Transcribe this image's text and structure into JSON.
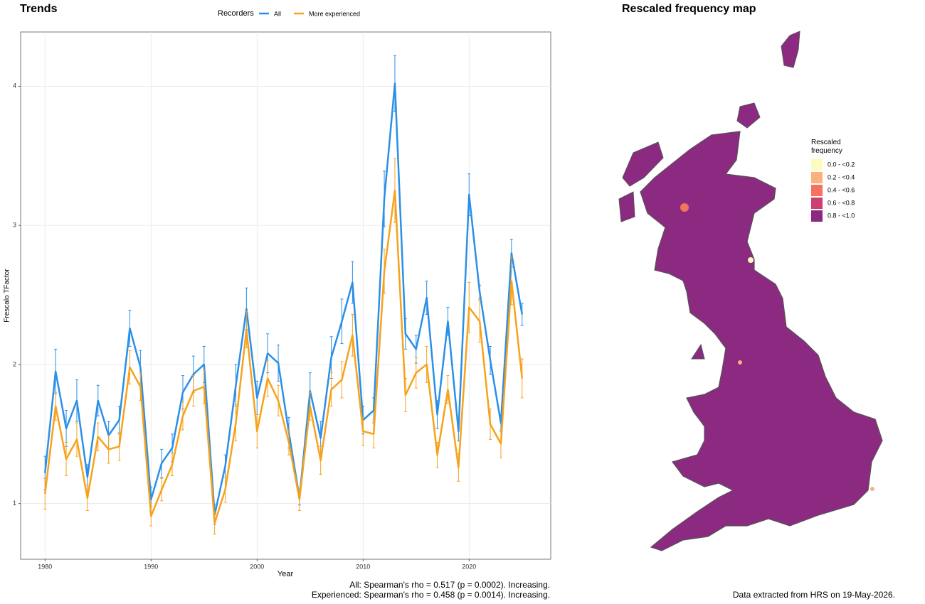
{
  "chart_data": [
    {
      "type": "line",
      "title": "Trends",
      "legend_title": "Recorders",
      "x_label": "Year",
      "y_label": "Frescalo TFactor",
      "captions": [
        "All: Spearman's rho = 0.517 (p = 0.0002). Increasing.",
        "Experienced: Spearman's rho = 0.458 (p = 0.0014). Increasing."
      ],
      "legend": "top",
      "grid": true,
      "x": [
        1980,
        1981,
        1982,
        1983,
        1984,
        1985,
        1986,
        1987,
        1988,
        1989,
        1990,
        1991,
        1992,
        1993,
        1994,
        1995,
        1996,
        1997,
        1998,
        1999,
        2000,
        2001,
        2002,
        2003,
        2004,
        2005,
        2006,
        2007,
        2008,
        2009,
        2010,
        2011,
        2012,
        2013,
        2014,
        2015,
        2016,
        2017,
        2018,
        2019,
        2020,
        2021,
        2022,
        2023,
        2024,
        2025
      ],
      "xlim": [
        1977.7,
        2027.7
      ],
      "xticks": [
        1980,
        1990,
        2000,
        2010,
        2020
      ],
      "ylim": [
        0.6,
        4.39
      ],
      "yticks": [
        1,
        2,
        3,
        4
      ],
      "series": [
        {
          "name": "All",
          "color": "#2b8fe8",
          "values": [
            1.22,
            1.95,
            1.54,
            1.74,
            1.19,
            1.74,
            1.49,
            1.6,
            2.26,
            1.98,
            1.03,
            1.29,
            1.4,
            1.8,
            1.93,
            2.0,
            0.92,
            1.27,
            1.85,
            2.4,
            1.76,
            2.08,
            2.01,
            1.51,
            1.04,
            1.81,
            1.47,
            2.05,
            2.31,
            2.59,
            1.6,
            1.67,
            3.19,
            4.02,
            2.22,
            2.11,
            2.48,
            1.64,
            2.31,
            1.52,
            3.22,
            2.52,
            2.03,
            1.58,
            2.8,
            2.36
          ],
          "errors": [
            0.12,
            0.16,
            0.13,
            0.15,
            0.09,
            0.11,
            0.1,
            0.1,
            0.13,
            0.12,
            0.09,
            0.1,
            0.1,
            0.12,
            0.13,
            0.13,
            0.07,
            0.08,
            0.15,
            0.15,
            0.12,
            0.14,
            0.13,
            0.11,
            0.05,
            0.13,
            0.12,
            0.15,
            0.16,
            0.15,
            0.1,
            0.09,
            0.2,
            0.2,
            0.11,
            0.1,
            0.12,
            0.1,
            0.1,
            0.07,
            0.15,
            0.05,
            0.1,
            0.06,
            0.1,
            0.08
          ]
        },
        {
          "name": "More experienced",
          "color": "#f7a21b",
          "values": [
            1.07,
            1.7,
            1.32,
            1.46,
            1.04,
            1.48,
            1.39,
            1.41,
            1.98,
            1.84,
            0.91,
            1.1,
            1.28,
            1.63,
            1.81,
            1.84,
            0.86,
            1.1,
            1.58,
            2.25,
            1.52,
            1.9,
            1.74,
            1.44,
            1.03,
            1.7,
            1.31,
            1.82,
            1.89,
            2.21,
            1.52,
            1.5,
            2.67,
            3.25,
            1.78,
            1.94,
            2.0,
            1.35,
            1.82,
            1.26,
            2.41,
            2.31,
            1.57,
            1.43,
            2.6,
            1.9
          ],
          "errors": [
            0.11,
            0.1,
            0.12,
            0.12,
            0.09,
            0.1,
            0.1,
            0.1,
            0.12,
            0.1,
            0.07,
            0.08,
            0.08,
            0.1,
            0.11,
            0.12,
            0.08,
            0.09,
            0.13,
            0.13,
            0.12,
            0.13,
            0.11,
            0.09,
            0.08,
            0.1,
            0.1,
            0.12,
            0.13,
            0.15,
            0.1,
            0.1,
            0.16,
            0.23,
            0.12,
            0.11,
            0.13,
            0.09,
            0.1,
            0.1,
            0.18,
            0.15,
            0.11,
            0.1,
            0.17,
            0.14
          ]
        }
      ]
    },
    {
      "type": "map",
      "title": "Rescaled frequency map",
      "legend_title": "Rescaled frequency",
      "classes": [
        {
          "label": "0.0 - <0.2",
          "color": "#fcfcbe"
        },
        {
          "label": "0.2 - <0.4",
          "color": "#fbb07f"
        },
        {
          "label": "0.4 - <0.6",
          "color": "#f4725e"
        },
        {
          "label": "0.6 - <0.8",
          "color": "#cc3f71"
        },
        {
          "label": "0.8 - <1.0",
          "color": "#8b2a80"
        }
      ],
      "footer": "Data extracted from HRS on 19-May-2026."
    }
  ]
}
